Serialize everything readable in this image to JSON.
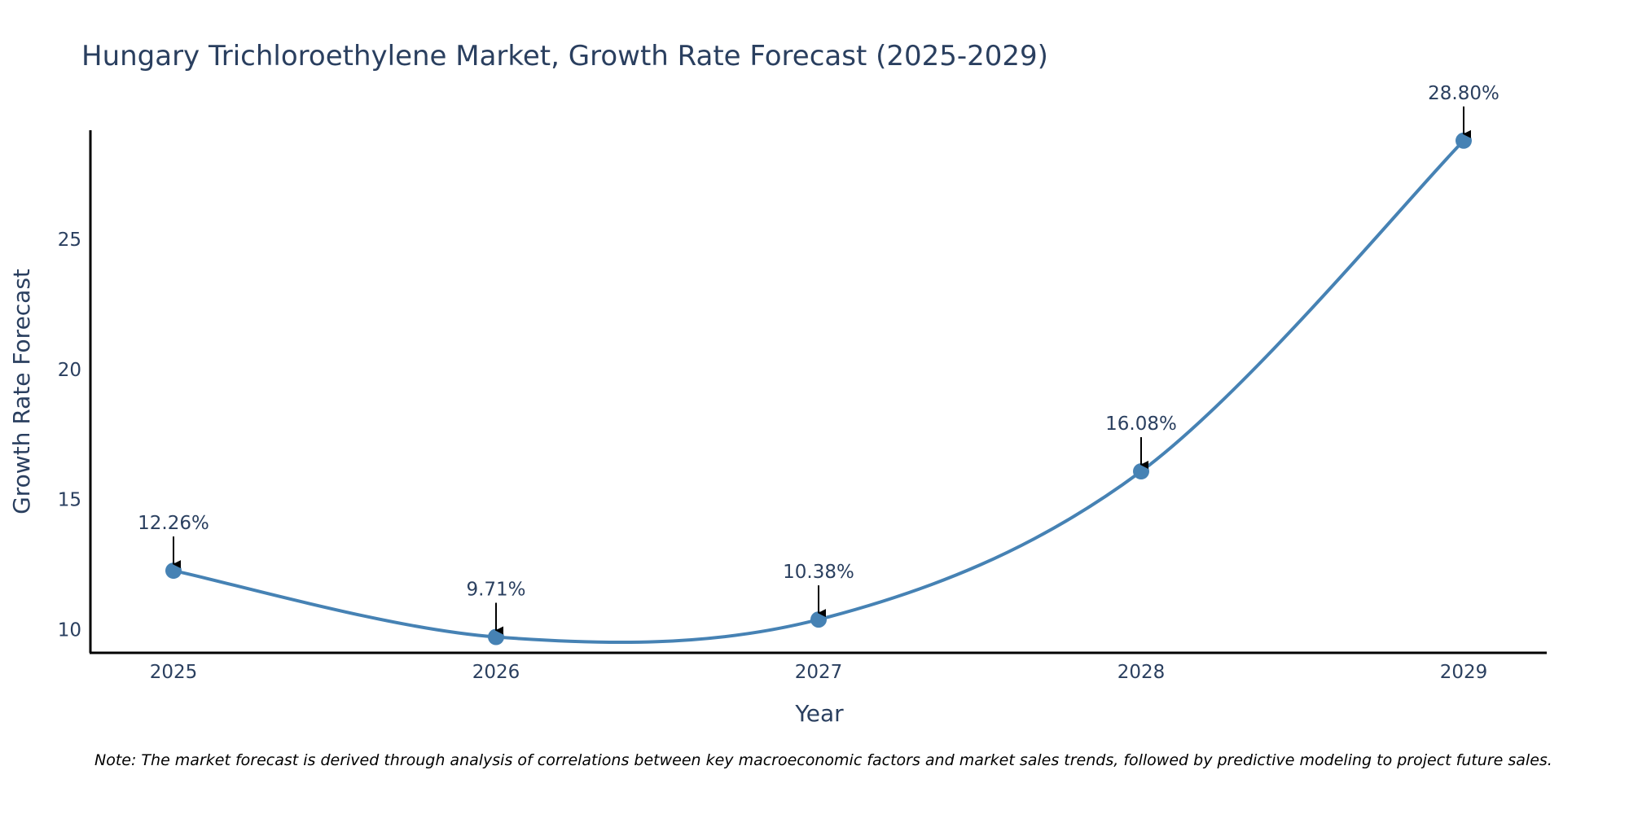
{
  "chart_data": {
    "type": "line",
    "title": "Hungary Trichloroethylene Market, Growth Rate Forecast (2025-2029)",
    "xlabel": "Year",
    "ylabel": "Growth Rate Forecast",
    "categories": [
      "2025",
      "2026",
      "2027",
      "2028",
      "2029"
    ],
    "values": [
      12.26,
      9.71,
      10.38,
      16.08,
      28.8
    ],
    "data_labels": [
      "12.26%",
      "9.71%",
      "10.38%",
      "16.08%",
      "28.80%"
    ],
    "yticks": [
      10,
      15,
      20,
      25
    ],
    "ytick_labels": [
      "10",
      "15",
      "20",
      "25"
    ],
    "ylim": [
      9.1,
      29.2
    ],
    "line_color": "#4682b4",
    "marker_color": "#4682b4",
    "arrow_color": "#000000",
    "smooth": true,
    "grid": false
  },
  "note": "Note: The market forecast is derived through analysis of correlations between key macroeconomic factors and market sales trends, followed by predictive modeling to project future sales."
}
